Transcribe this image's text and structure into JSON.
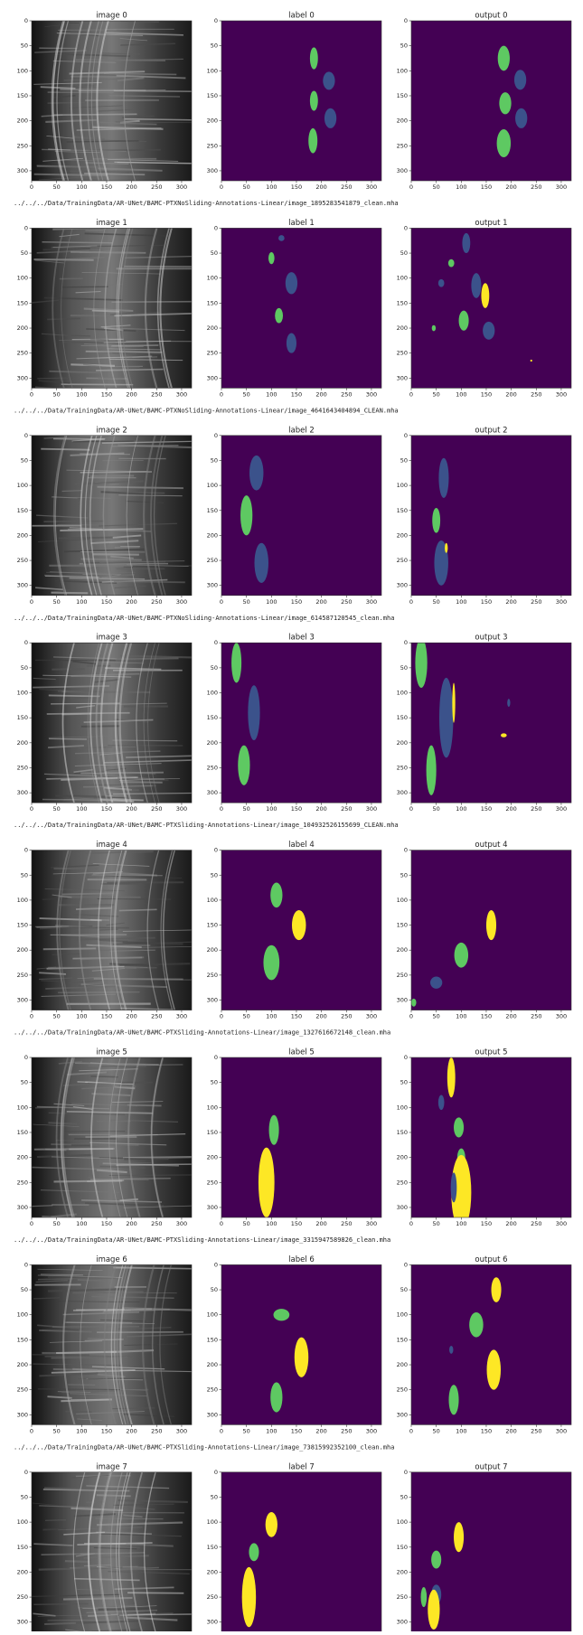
{
  "ticks": [
    0,
    50,
    100,
    150,
    200,
    250,
    300
  ],
  "rows": [
    {
      "panels": [
        {
          "title": "image 0"
        },
        {
          "title": "label 0"
        },
        {
          "title": "output 0"
        }
      ],
      "path": "../../../Data/TrainingData/AR-UNet/BAMC-PTXNoSliding-Annotations-Linear/image_1895283541879_clean.mha"
    },
    {
      "panels": [
        {
          "title": "image 1"
        },
        {
          "title": "label 1"
        },
        {
          "title": "output 1"
        }
      ],
      "path": "../../../Data/TrainingData/AR-UNet/BAMC-PTXNoSliding-Annotations-Linear/image_4641643404894_CLEAN.mha"
    },
    {
      "panels": [
        {
          "title": "image 2"
        },
        {
          "title": "label 2"
        },
        {
          "title": "output 2"
        }
      ],
      "path": "../../../Data/TrainingData/AR-UNet/BAMC-PTXNoSliding-Annotations-Linear/image_614587120545_clean.mha"
    },
    {
      "panels": [
        {
          "title": "image 3"
        },
        {
          "title": "label 3"
        },
        {
          "title": "output 3"
        }
      ],
      "path": "../../../Data/TrainingData/AR-UNet/BAMC-PTXSliding-Annotations-Linear/image_104932526155699_CLEAN.mha"
    },
    {
      "panels": [
        {
          "title": "image 4"
        },
        {
          "title": "label 4"
        },
        {
          "title": "output 4"
        }
      ],
      "path": "../../../Data/TrainingData/AR-UNet/BAMC-PTXSliding-Annotations-Linear/image_1327616672148_clean.mha"
    },
    {
      "panels": [
        {
          "title": "image 5"
        },
        {
          "title": "label 5"
        },
        {
          "title": "output 5"
        }
      ],
      "path": "../../../Data/TrainingData/AR-UNet/BAMC-PTXSliding-Annotations-Linear/image_3315947589826_clean.mha"
    },
    {
      "panels": [
        {
          "title": "image 6"
        },
        {
          "title": "label 6"
        },
        {
          "title": "output 6"
        }
      ],
      "path": "../../../Data/TrainingData/AR-UNet/BAMC-PTXSliding-Annotations-Linear/image_73815992352100_clean.mha"
    },
    {
      "panels": [
        {
          "title": "image 7"
        },
        {
          "title": "label 7"
        },
        {
          "title": "output 7"
        }
      ]
    }
  ]
}
